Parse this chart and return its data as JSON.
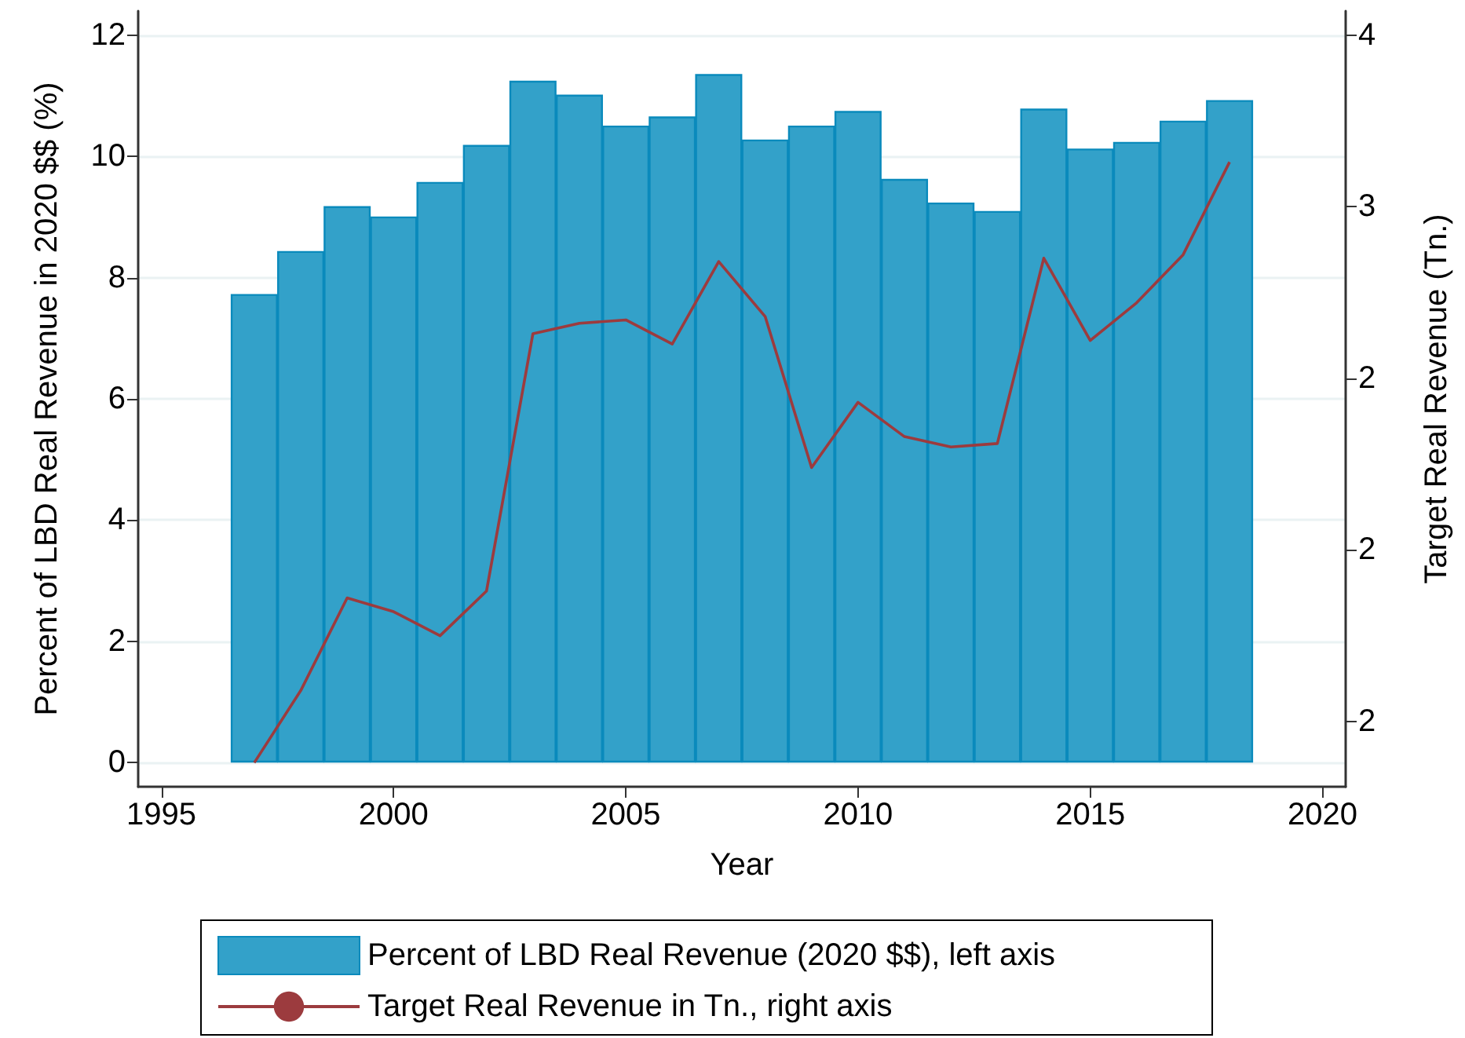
{
  "chart_data": {
    "type": "bar",
    "xlabel": "Year",
    "ylabel": "Percent of LBD Real Revenue in 2020 $$ (%)",
    "y2label": "Target Real Revenue (Tn.)",
    "x": [
      1997,
      1998,
      1999,
      2000,
      2001,
      2002,
      2003,
      2004,
      2005,
      2006,
      2007,
      2008,
      2009,
      2010,
      2011,
      2012,
      2013,
      2014,
      2015,
      2016,
      2017,
      2018
    ],
    "series": [
      {
        "name": "Percent of LBD Real Revenue (2020 $$), left axis",
        "color": "#33a1c9",
        "values": [
          7.73,
          8.44,
          9.18,
          9.01,
          9.58,
          10.19,
          11.25,
          11.02,
          10.51,
          10.66,
          11.36,
          10.28,
          10.51,
          10.75,
          9.63,
          9.24,
          9.1,
          10.79,
          10.13,
          10.24,
          10.59,
          10.93
        ]
      },
      {
        "name": "Target Real Revenue in Tn., right axis",
        "type": "line",
        "axis": "y2",
        "color": "#9c3b3e",
        "values": [
          1.38,
          1.59,
          1.86,
          1.82,
          1.75,
          1.88,
          2.63,
          2.66,
          2.67,
          2.6,
          2.84,
          2.68,
          2.24,
          2.43,
          2.33,
          2.3,
          2.31,
          2.85,
          2.61,
          2.72,
          2.86,
          3.13
        ]
      }
    ],
    "xlim": [
      1994.5,
      2020.5
    ],
    "xticks": [
      1995,
      2000,
      2005,
      2010,
      2015,
      2020
    ],
    "ylim": [
      -0.4,
      12.4
    ],
    "yticks": [
      0,
      2,
      4,
      6,
      8,
      10,
      12
    ],
    "y2lim": [
      1.31,
      3.57
    ],
    "y2ticks": [
      {
        "value": 1.5,
        "label": "2"
      },
      {
        "value": 2,
        "label": "2"
      },
      {
        "value": 2.5,
        "label": "2"
      },
      {
        "value": 3,
        "label": "3"
      },
      {
        "value": 3.5,
        "label": "4"
      }
    ],
    "grid": "y",
    "legend": "bottom",
    "marker": "none"
  }
}
